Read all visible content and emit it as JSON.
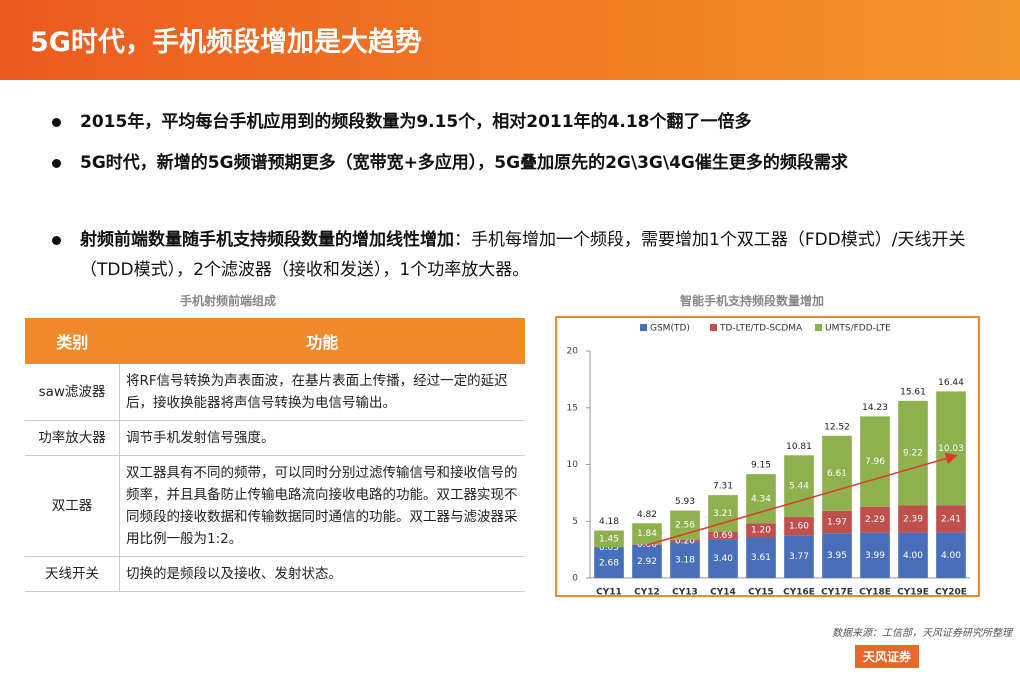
{
  "header": {
    "title": "5G时代，手机频段增加是大趋势"
  },
  "bullets": [
    {
      "text": "2015年，平均每台手机应用到的频段数量为9.15个，相对2011年的4.18个翻了一倍多"
    },
    {
      "text": "5G时代，新增的5G频谱预期更多（宽带宽+多应用），5G叠加原先的2G\\3G\\4G催生更多的频段需求"
    },
    {
      "bold": "射频前端数量随手机支持频段数量的增加线性增加",
      "text": "：手机每增加一个频段，需要增加1个双工器（FDD模式）/天线开关（TDD模式），2个滤波器（接收和发送），1个功率放大器。"
    }
  ],
  "table": {
    "caption": "手机射频前端组成",
    "columns": [
      "类别",
      "功能"
    ],
    "rows": [
      [
        "saw滤波器",
        "将RF信号转换为声表面波，在基片表面上传播，经过一定的延迟后，接收换能器将声信号转换为电信号输出。"
      ],
      [
        "功率放大器",
        "调节手机发射信号强度。"
      ],
      [
        "双工器",
        "双工器具有不同的频带，可以同时分别过滤传输信号和接收信号的频率，并且具备防止传输电路流向接收电路的功能。双工器实现不同频段的接收数据和传输数据同时通信的功能。双工器与滤波器采用比例一般为1:2。"
      ],
      [
        "天线开关",
        "切换的是频段以及接收、发射状态。"
      ]
    ]
  },
  "chart_data": {
    "type": "stacked_bar",
    "title": "智能手机支持频段数量增加",
    "categories": [
      "CY11",
      "CY12",
      "CY13",
      "CY14",
      "CY15",
      "CY16E",
      "CY17E",
      "CY18E",
      "CY19E",
      "CY20E"
    ],
    "series": [
      {
        "name": "GSM(TD)",
        "color": "#4a6fba",
        "values": [
          2.68,
          2.92,
          3.18,
          3.4,
          3.61,
          3.77,
          3.95,
          3.99,
          4.0,
          4.0
        ],
        "value_labels": [
          "2.68",
          "2.92",
          "3.18",
          "3.40",
          "3.61",
          "3.77",
          "3.95",
          "3.99",
          "4.00",
          "4.00"
        ]
      },
      {
        "name": "TD-LTE/TD-SCDMA",
        "color": "#c0504d",
        "values": [
          0.05,
          0.06,
          0.2,
          0.69,
          1.2,
          1.6,
          1.97,
          2.29,
          2.39,
          2.41
        ],
        "value_labels": [
          "0.05",
          "0.06",
          "0.20",
          "0.69",
          "1.20",
          "1.60",
          "1.97",
          "2.29",
          "2.39",
          "2.41"
        ]
      },
      {
        "name": "UMTS/FDD-LTE",
        "color": "#8fb04f",
        "values": [
          1.45,
          1.84,
          2.56,
          3.21,
          4.34,
          5.44,
          6.61,
          7.96,
          9.22,
          10.03
        ],
        "value_labels": [
          "1.45",
          "1.84",
          "2.56",
          "3.21",
          "4.34",
          "5.44",
          "6.61",
          "7.96",
          "9.22",
          "10.03"
        ]
      }
    ],
    "totals": [
      4.18,
      4.82,
      5.93,
      7.31,
      9.15,
      10.81,
      12.52,
      14.23,
      15.61,
      16.44
    ],
    "ylim": [
      0,
      20
    ],
    "yticks": [
      0,
      5,
      10,
      15,
      20
    ]
  },
  "footer": {
    "source": "数据来源：工信部，天风证券研究所整理",
    "logo": "天风证券"
  }
}
